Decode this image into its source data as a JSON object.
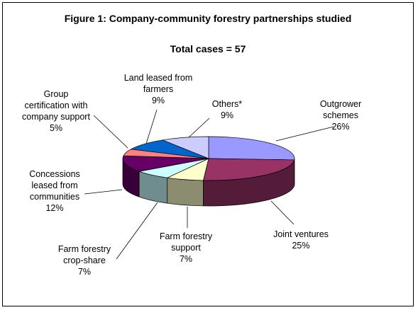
{
  "chart_data": {
    "type": "pie",
    "title": "Figure 1: Company-community forestry partnerships studied",
    "subtitle": "Total cases = 57",
    "slices": [
      {
        "label": "Outgrower schemes",
        "value": 26,
        "pct_label": "26%",
        "color": "#9999ff"
      },
      {
        "label": "Joint ventures",
        "value": 25,
        "pct_label": "25%",
        "color": "#993366"
      },
      {
        "label": "Farm forestry support",
        "value": 7,
        "pct_label": "7%",
        "color": "#ffffcc"
      },
      {
        "label": "Farm forestry crop-share",
        "value": 7,
        "pct_label": "7%",
        "color": "#ccffff"
      },
      {
        "label": "Concessions leased from communities",
        "value": 12,
        "pct_label": "12%",
        "color": "#660066"
      },
      {
        "label": "Group certification with company support",
        "value": 5,
        "pct_label": "5%",
        "color": "#ff8080"
      },
      {
        "label": "Land leased from farmers",
        "value": 9,
        "pct_label": "9%",
        "color": "#0066cc"
      },
      {
        "label": "Others*",
        "value": 9,
        "pct_label": "9%",
        "color": "#ccccff"
      }
    ],
    "slice_label_lines": [
      [
        "Outgrower",
        "schemes",
        "26%"
      ],
      [
        "Joint ventures",
        "25%"
      ],
      [
        "Farm forestry",
        "support",
        "7%"
      ],
      [
        "Farm forestry",
        "crop-share",
        "7%"
      ],
      [
        "Concessions",
        "leased from",
        "communities",
        "12%"
      ],
      [
        "Group",
        "certification with",
        "company support",
        "5%"
      ],
      [
        "Land leased from",
        "farmers",
        "9%"
      ],
      [
        "Others*",
        "9%"
      ]
    ]
  }
}
